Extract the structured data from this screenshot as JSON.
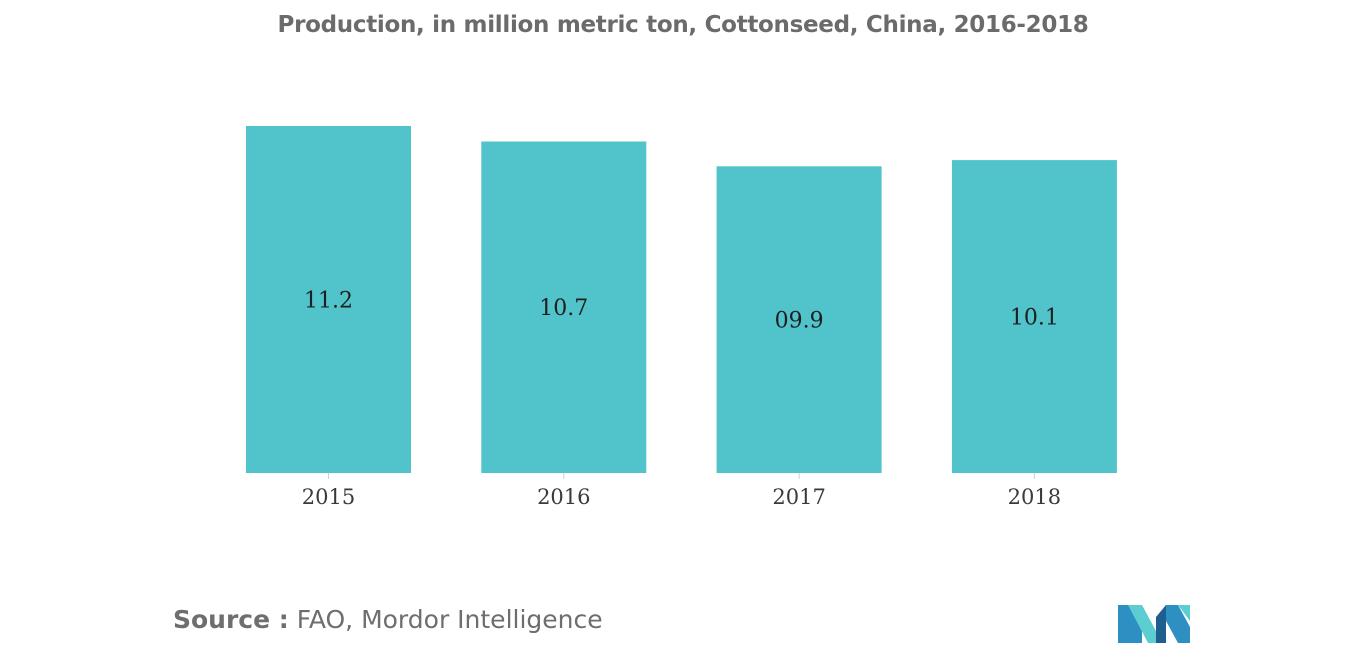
{
  "chart_data": {
    "type": "bar",
    "title": "Production, in million metric ton, Cottonseed, China, 2016-2018",
    "categories": [
      "2015",
      "2016",
      "2017",
      "2018"
    ],
    "values": [
      11.2,
      10.7,
      9.9,
      10.1
    ],
    "data_labels": [
      "11.2",
      "10.7",
      "09.9",
      "10.1"
    ],
    "xlabel": "",
    "ylabel": "",
    "ylim": [
      0,
      11.2
    ],
    "grid": false,
    "legend": "none",
    "bar_color": "#51c3ca"
  },
  "source": {
    "prefix": "Source :",
    "text": "FAO, Mordor Intelligence"
  },
  "logo": {
    "icon": "mordor-intelligence-logo-icon",
    "colors": [
      "#2e8fc3",
      "#5ccdd0",
      "#1f5f8f"
    ]
  }
}
